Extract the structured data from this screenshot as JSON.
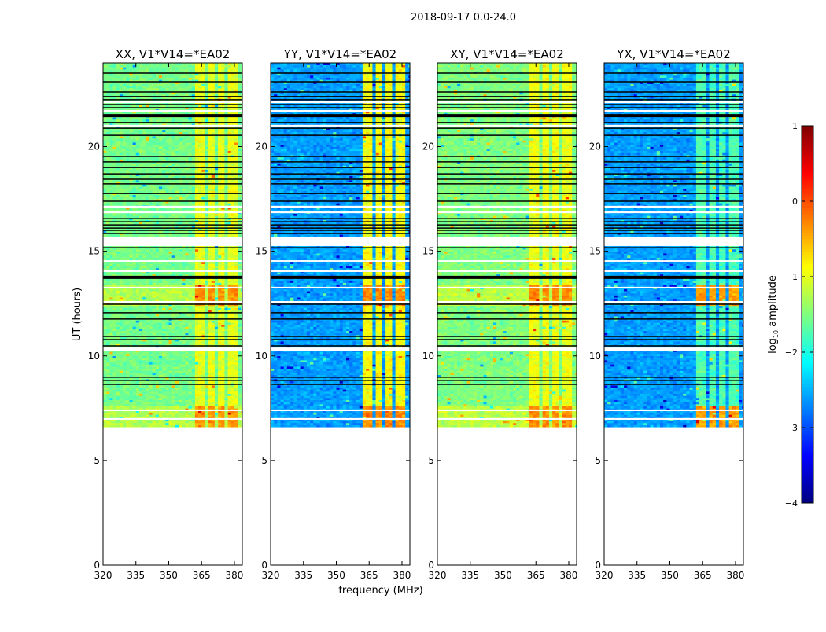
{
  "suptitle": "2018-09-17 0.0-24.0",
  "shared": {
    "xlabel": "frequency (MHz)",
    "ylabel": "UT (hours)",
    "xlim": [
      320,
      383.6
    ],
    "ylim": [
      0,
      24
    ],
    "xticks": [
      "320",
      "335",
      "350",
      "365",
      "380"
    ],
    "yticks": [
      "0",
      "5",
      "10",
      "15",
      "20"
    ],
    "data_start_hour": 6.6,
    "rfi_bands_mhz": [
      [
        361.5,
        366.5
      ],
      [
        367.5,
        371
      ],
      [
        372,
        376
      ],
      [
        377,
        381
      ]
    ],
    "strong_episodes_hours": [
      [
        6.6,
        7.5
      ],
      [
        12.3,
        13.3
      ]
    ],
    "flag_lines_hours": [
      23.51,
      23.1,
      22.61,
      22.39,
      22.24,
      22.01,
      21.86,
      21.15,
      20.88,
      20.54,
      19.53,
      19.27,
      19.0,
      18.7,
      18.44,
      18.22,
      17.76,
      17.39,
      16.56,
      16.41,
      16.26,
      16.11,
      16.0,
      15.85,
      15.17,
      12.47,
      12.06,
      11.76,
      10.93,
      10.78,
      10.48,
      8.98,
      8.83,
      8.64
    ],
    "thick_flag_lines_hours": [
      21.48,
      13.75
    ],
    "gaps_hours": [
      [
        22.08,
        22.16
      ],
      [
        21.67,
        21.75
      ],
      [
        20.96,
        21.04
      ],
      [
        17.09,
        17.17
      ],
      [
        16.82,
        16.9
      ],
      [
        15.25,
        15.7
      ],
      [
        14.5,
        14.57
      ],
      [
        14.01,
        14.09
      ],
      [
        13.22,
        13.3
      ],
      [
        12.54,
        12.62
      ],
      [
        10.25,
        10.4
      ],
      [
        7.36,
        7.44
      ],
      [
        6.95,
        7.03
      ]
    ]
  },
  "chart_data": [
    {
      "type": "heatmap",
      "title": "XX, V1*V14=*EA02",
      "background_log_amp": -1.55,
      "band_log_amp": -1.0,
      "episode_log_amp": -0.35
    },
    {
      "type": "heatmap",
      "title": "YY, V1*V14=*EA02",
      "background_log_amp": -2.6,
      "band_log_amp": -0.9,
      "episode_log_amp": -0.3
    },
    {
      "type": "heatmap",
      "title": "XY, V1*V14=*EA02",
      "background_log_amp": -1.5,
      "band_log_amp": -0.95,
      "episode_log_amp": -0.3
    },
    {
      "type": "heatmap",
      "title": "YX, V1*V14=*EA02",
      "background_log_amp": -2.6,
      "band_log_amp": -1.75,
      "episode_log_amp": -0.4
    }
  ],
  "colorbar": {
    "label_prefix": "log",
    "label_sub": "10",
    "label_suffix": " amplitude",
    "range": [
      -4,
      1
    ],
    "ticks": [
      "1",
      "0",
      "−1",
      "−2",
      "−3",
      "−4"
    ],
    "colormap": "jet"
  }
}
